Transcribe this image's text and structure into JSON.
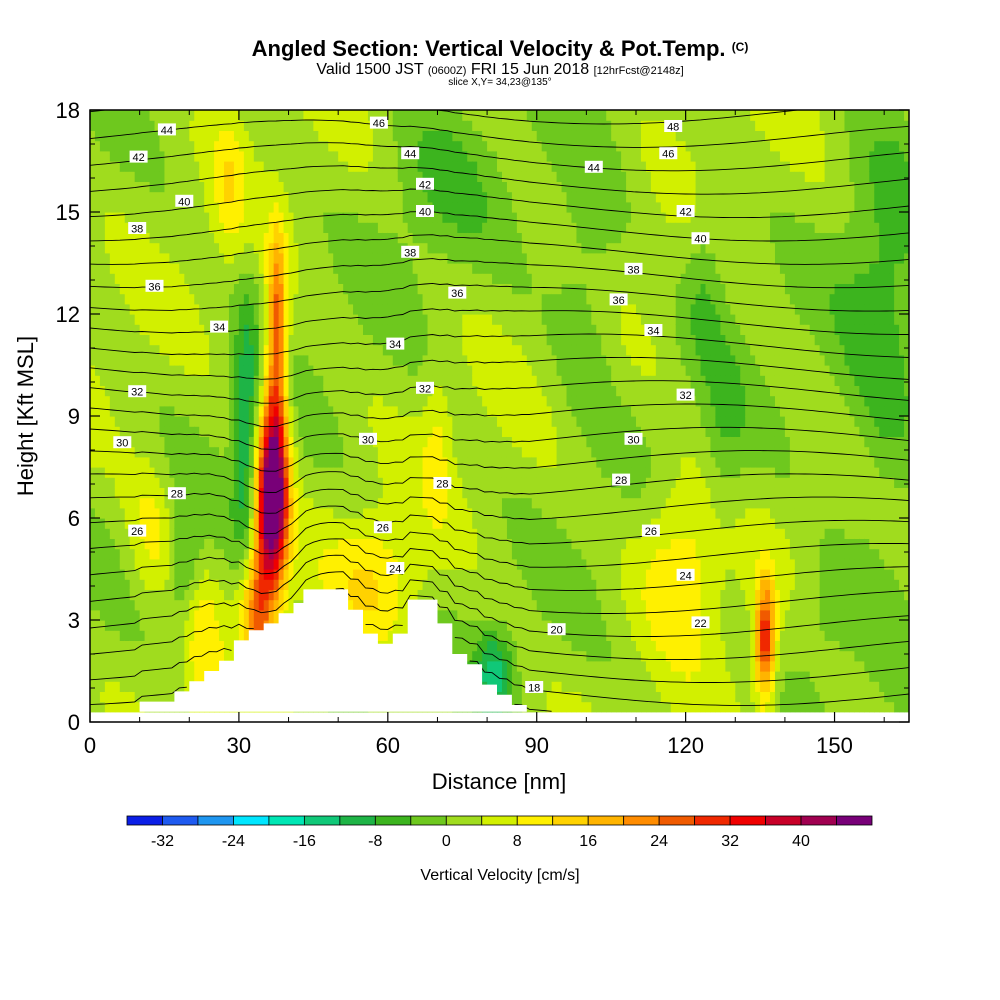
{
  "title": {
    "main": "Angled Section: Vertical Velocity & Pot.Temp.",
    "main_mark": "(C)",
    "valid_a": "Valid 1500 JST",
    "valid_small": "(0600Z)",
    "valid_b": "FRI 15 Jun 2018",
    "valid_fcst": "[12hrFcst@2148z]",
    "slice": "slice X,Y= 34,23@135°"
  },
  "chart_data": {
    "type": "heatmap",
    "xlabel": "Distance [nm]",
    "ylabel": "Height [Kft MSL]",
    "xlim": [
      0,
      165
    ],
    "ylim": [
      0,
      18
    ],
    "xticks": [
      0,
      30,
      60,
      90,
      120,
      150
    ],
    "yticks": [
      0,
      3,
      6,
      9,
      12,
      15,
      18
    ],
    "colorbar": {
      "label": "Vertical Velocity [cm/s]",
      "range": [
        -36,
        48
      ],
      "bin_width": 4,
      "tick_values": [
        -32,
        -24,
        -16,
        -8,
        0,
        8,
        16,
        24,
        32,
        40
      ],
      "tick_labels": [
        "-32",
        "-24",
        "-16",
        "-8",
        "0",
        "8",
        "16",
        "24",
        "32",
        "40"
      ],
      "colors": [
        "#0a1ee6",
        "#1e5af0",
        "#1e96f0",
        "#00e6ff",
        "#00e6b4",
        "#10c878",
        "#1eb446",
        "#3cb41e",
        "#6ec81e",
        "#a0dc1e",
        "#d2f000",
        "#fff000",
        "#ffd200",
        "#ffb400",
        "#ff8c00",
        "#f05a00",
        "#f02800",
        "#f00000",
        "#c80028",
        "#a00050",
        "#780078"
      ]
    },
    "terrain_outline": [
      [
        10,
        0.3
      ],
      [
        10,
        0.6
      ],
      [
        17,
        0.6
      ],
      [
        17,
        0.9
      ],
      [
        20,
        0.9
      ],
      [
        20,
        1.2
      ],
      [
        23,
        1.2
      ],
      [
        23,
        1.5
      ],
      [
        26,
        1.5
      ],
      [
        26,
        1.8
      ],
      [
        29,
        1.8
      ],
      [
        29,
        2.4
      ],
      [
        32,
        2.4
      ],
      [
        32,
        2.7
      ],
      [
        35,
        2.7
      ],
      [
        35,
        2.9
      ],
      [
        38,
        2.9
      ],
      [
        38,
        3.2
      ],
      [
        41,
        3.2
      ],
      [
        41,
        3.5
      ],
      [
        43,
        3.5
      ],
      [
        43,
        3.9
      ],
      [
        52,
        3.9
      ],
      [
        52,
        3.3
      ],
      [
        55,
        3.3
      ],
      [
        55,
        2.6
      ],
      [
        58,
        2.6
      ],
      [
        58,
        2.3
      ],
      [
        61,
        2.3
      ],
      [
        61,
        2.6
      ],
      [
        64,
        2.6
      ],
      [
        64,
        3.6
      ],
      [
        70,
        3.6
      ],
      [
        70,
        2.9
      ],
      [
        73,
        2.9
      ],
      [
        73,
        2.0
      ],
      [
        76,
        2.0
      ],
      [
        76,
        1.7
      ],
      [
        79,
        1.7
      ],
      [
        79,
        1.1
      ],
      [
        82,
        1.1
      ],
      [
        82,
        0.8
      ],
      [
        85,
        0.8
      ],
      [
        85,
        0.5
      ],
      [
        88,
        0.5
      ],
      [
        88,
        0.3
      ]
    ],
    "updrafts": [
      {
        "x": 36.5,
        "z": 6.4,
        "sx": 2.3,
        "sz": 1.8,
        "w": 44
      },
      {
        "x": 37.5,
        "z": 9.2,
        "sx": 1.6,
        "sz": 2.6,
        "w": 22
      },
      {
        "x": 37.8,
        "z": 12.4,
        "sx": 1.2,
        "sz": 1.5,
        "w": 12
      },
      {
        "x": 33.5,
        "z": 3.4,
        "sx": 2.2,
        "sz": 1.3,
        "w": 22
      },
      {
        "x": 136.0,
        "z": 2.4,
        "sx": 1.4,
        "sz": 1.2,
        "w": 30
      },
      {
        "x": 119.0,
        "z": 4.8,
        "sx": 6.0,
        "sz": 1.8,
        "w": 10
      },
      {
        "x": 58.0,
        "z": 4.2,
        "sx": 6.5,
        "sz": 1.3,
        "w": 9
      },
      {
        "x": 28.0,
        "z": 15.8,
        "sx": 2.3,
        "sz": 1.6,
        "w": 7
      },
      {
        "x": 12.0,
        "z": 5.5,
        "sx": 3.5,
        "sz": 1.6,
        "w": 7
      },
      {
        "x": 22.0,
        "z": 2.2,
        "sx": 2.8,
        "sz": 1.4,
        "w": 8
      },
      {
        "x": 70.0,
        "z": 8.3,
        "sx": 2.0,
        "sz": 1.5,
        "w": 6
      }
    ],
    "downdrafts": [
      {
        "x": 31.5,
        "z": 8.2,
        "sx": 1.8,
        "sz": 3.0,
        "w": -14
      },
      {
        "x": 19.0,
        "z": 4.5,
        "sx": 2.0,
        "sz": 1.4,
        "w": -8
      },
      {
        "x": 81.5,
        "z": 1.4,
        "sx": 2.6,
        "sz": 0.9,
        "w": -14
      },
      {
        "x": 100.0,
        "z": 13.0,
        "sx": 5.0,
        "sz": 2.8,
        "w": -6
      },
      {
        "x": 160.0,
        "z": 11.0,
        "sx": 6.0,
        "sz": 4.5,
        "w": -8
      },
      {
        "x": 70.0,
        "z": 16.0,
        "sx": 8.0,
        "sz": 1.8,
        "w": -5
      },
      {
        "x": 128.0,
        "z": 8.0,
        "sx": 3.0,
        "sz": 2.0,
        "w": -5
      },
      {
        "x": 147.0,
        "z": 3.0,
        "sx": 5.0,
        "sz": 1.4,
        "w": -5
      },
      {
        "x": 124.0,
        "z": 13.0,
        "sx": 3.0,
        "sz": 2.0,
        "w": -6
      }
    ],
    "theta_base_c": 16,
    "theta_lapse_c_per_kft": 1.45,
    "contour_interval_c": 1,
    "contour_labels": [
      {
        "x": 15.5,
        "z": 17.4,
        "t": "44"
      },
      {
        "x": 58.2,
        "z": 17.6,
        "t": "46"
      },
      {
        "x": 117.5,
        "z": 17.5,
        "t": "48"
      },
      {
        "x": 9.8,
        "z": 16.6,
        "t": "42"
      },
      {
        "x": 64.5,
        "z": 16.7,
        "t": "44"
      },
      {
        "x": 116.5,
        "z": 16.7,
        "t": "46"
      },
      {
        "x": 101.5,
        "z": 16.3,
        "t": "44"
      },
      {
        "x": 67.5,
        "z": 15.8,
        "t": "42"
      },
      {
        "x": 19.0,
        "z": 15.3,
        "t": "40"
      },
      {
        "x": 67.5,
        "z": 15.0,
        "t": "40"
      },
      {
        "x": 120.0,
        "z": 15.0,
        "t": "42"
      },
      {
        "x": 9.5,
        "z": 14.5,
        "t": "38"
      },
      {
        "x": 123.0,
        "z": 14.2,
        "t": "40"
      },
      {
        "x": 64.5,
        "z": 13.8,
        "t": "38"
      },
      {
        "x": 109.5,
        "z": 13.3,
        "t": "38"
      },
      {
        "x": 13.0,
        "z": 12.8,
        "t": "36"
      },
      {
        "x": 74.0,
        "z": 12.6,
        "t": "36"
      },
      {
        "x": 106.5,
        "z": 12.4,
        "t": "36"
      },
      {
        "x": 26.0,
        "z": 11.6,
        "t": "34"
      },
      {
        "x": 113.5,
        "z": 11.5,
        "t": "34"
      },
      {
        "x": 61.5,
        "z": 11.1,
        "t": "34"
      },
      {
        "x": 9.5,
        "z": 9.7,
        "t": "32"
      },
      {
        "x": 67.5,
        "z": 9.8,
        "t": "32"
      },
      {
        "x": 120.0,
        "z": 9.6,
        "t": "32"
      },
      {
        "x": 6.5,
        "z": 8.2,
        "t": "30"
      },
      {
        "x": 56.0,
        "z": 8.3,
        "t": "30"
      },
      {
        "x": 109.5,
        "z": 8.3,
        "t": "30"
      },
      {
        "x": 17.5,
        "z": 6.7,
        "t": "28"
      },
      {
        "x": 71.0,
        "z": 7.0,
        "t": "28"
      },
      {
        "x": 107.0,
        "z": 7.1,
        "t": "28"
      },
      {
        "x": 9.5,
        "z": 5.6,
        "t": "26"
      },
      {
        "x": 59.0,
        "z": 5.7,
        "t": "26"
      },
      {
        "x": 113.0,
        "z": 5.6,
        "t": "26"
      },
      {
        "x": 61.5,
        "z": 4.5,
        "t": "24"
      },
      {
        "x": 120.0,
        "z": 4.3,
        "t": "24"
      },
      {
        "x": 123.0,
        "z": 2.9,
        "t": "22"
      },
      {
        "x": 94.0,
        "z": 2.7,
        "t": "20"
      },
      {
        "x": 89.5,
        "z": 1.0,
        "t": "18"
      }
    ]
  }
}
